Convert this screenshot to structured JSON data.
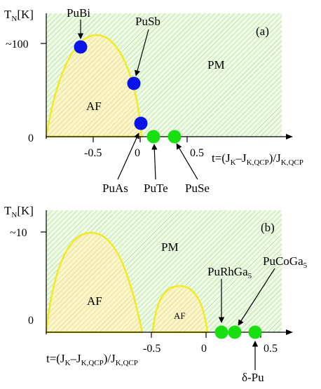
{
  "colors": {
    "pm_fill": "#eef9e6",
    "pm_hatch": "#a6dc8a",
    "af_fill": "#fbf5c8",
    "af_hatch": "#d8d58a",
    "af_border": "#f2ea22",
    "blue_point": "#0a14e6",
    "green_point": "#18e010"
  },
  "panel_a": {
    "tag": "(a)",
    "y_axis_base": "T",
    "y_axis_sub": "N",
    "y_axis_unit": "[K]",
    "y_tick_top": "~100",
    "y_tick_zero": "0",
    "x_ticks": [
      "-0.5",
      "0",
      "0.5"
    ],
    "x_label": {
      "t": "t=(J",
      "k": "K",
      "dash": "–J",
      "kq": "K,QCP",
      "close": ")/J"
    },
    "region_pm": "PM",
    "region_af": "AF",
    "compounds": {
      "pubi": "PuBi",
      "pusb": "PuSb",
      "puas": "PuAs",
      "pute": "PuTe",
      "puse": "PuSe"
    }
  },
  "panel_b": {
    "tag": "(b)",
    "y_axis_base": "T",
    "y_axis_sub": "N",
    "y_axis_unit": "[K]",
    "y_tick_top": "~10",
    "y_tick_zero": "0",
    "x_ticks": [
      "-0.5",
      "0",
      "0.5"
    ],
    "x_label": {
      "t": "t=(J",
      "k": "K",
      "dash": "–J",
      "kq": "K,QCP",
      "close": ")/J"
    },
    "region_pm": "PM",
    "region_af_big": "AF",
    "region_af_small": "AF",
    "compounds": {
      "purhga5_base": "PuRhGa",
      "purhga5_sub": "5",
      "pucoga5_base": "PuCoGa",
      "pucoga5_sub": "5",
      "delta_pu": "δ-Pu"
    }
  }
}
